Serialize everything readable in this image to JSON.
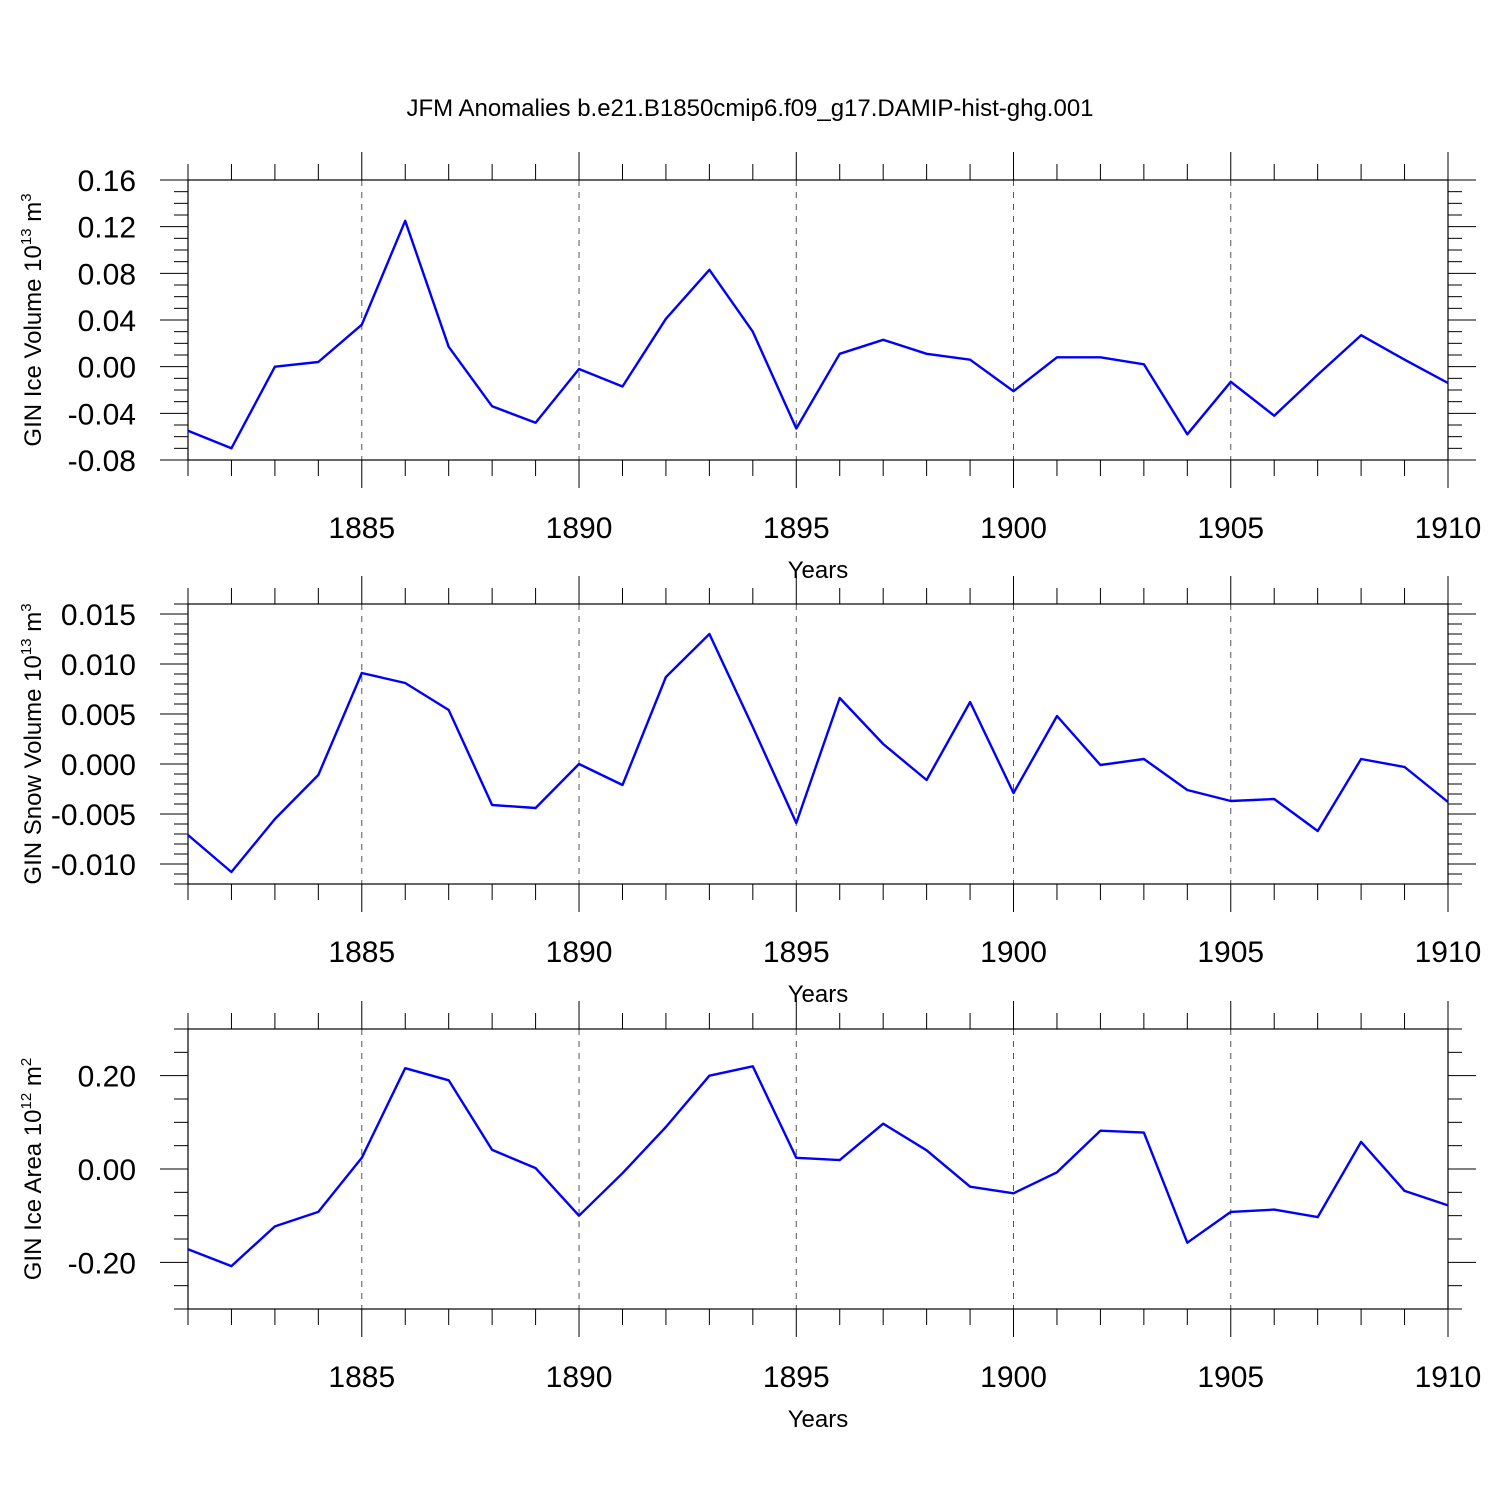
{
  "title": "JFM Anomalies b.e21.B1850cmip6.f09_g17.DAMIP-hist-ghg.001",
  "colors": {
    "series": "#0000ff",
    "frame": "#000000",
    "grid": "#555555"
  },
  "chart_data": [
    {
      "type": "line",
      "name": "ice-volume",
      "ylabel_main": "GIN Ice Volume 10",
      "ylabel_exp": "13",
      "ylabel_unit": "m",
      "ylabel_unit_exp": "3",
      "xlabel": "Years",
      "xlim": [
        1881,
        1910
      ],
      "ylim": [
        -0.08,
        0.16
      ],
      "x_ticks": [
        1885,
        1890,
        1895,
        1900,
        1905,
        1910
      ],
      "x_tick_labels": [
        "1885",
        "1890",
        "1895",
        "1900",
        "1905",
        "1910"
      ],
      "y_ticks": [
        -0.08,
        -0.04,
        0.0,
        0.04,
        0.08,
        0.12,
        0.16
      ],
      "y_tick_labels": [
        "-0.08",
        "-0.04",
        "0.00",
        "0.04",
        "0.08",
        "0.12",
        "0.16"
      ],
      "x_minor_step": 1,
      "y_minor_step": 0.01,
      "grid": "x-dashed",
      "x": [
        1881,
        1882,
        1883,
        1884,
        1885,
        1886,
        1887,
        1888,
        1889,
        1890,
        1891,
        1892,
        1893,
        1894,
        1895,
        1896,
        1897,
        1898,
        1899,
        1900,
        1901,
        1902,
        1903,
        1904,
        1905,
        1906,
        1907,
        1908,
        1909,
        1910
      ],
      "values": [
        -0.055,
        -0.07,
        0.0,
        0.004,
        0.036,
        0.125,
        0.017,
        -0.034,
        -0.048,
        -0.002,
        -0.017,
        0.041,
        0.083,
        0.03,
        -0.053,
        0.011,
        0.023,
        0.011,
        0.006,
        -0.021,
        0.008,
        0.008,
        0.002,
        -0.058,
        -0.013,
        -0.042,
        -0.007,
        0.027,
        0.006,
        -0.014
      ]
    },
    {
      "type": "line",
      "name": "snow-volume",
      "ylabel_main": "GIN Snow Volume 10",
      "ylabel_exp": "13",
      "ylabel_unit": "m",
      "ylabel_unit_exp": "3",
      "xlabel": "Years",
      "xlim": [
        1881,
        1910
      ],
      "ylim": [
        -0.012,
        0.016
      ],
      "x_ticks": [
        1885,
        1890,
        1895,
        1900,
        1905,
        1910
      ],
      "x_tick_labels": [
        "1885",
        "1890",
        "1895",
        "1900",
        "1905",
        "1910"
      ],
      "y_ticks": [
        -0.01,
        -0.005,
        0.0,
        0.005,
        0.01,
        0.015
      ],
      "y_tick_labels": [
        "-0.010",
        "-0.005",
        "0.000",
        "0.005",
        "0.010",
        "0.015"
      ],
      "x_minor_step": 1,
      "y_minor_step": 0.001,
      "grid": "x-dashed",
      "x": [
        1881,
        1882,
        1883,
        1884,
        1885,
        1886,
        1887,
        1888,
        1889,
        1890,
        1891,
        1892,
        1893,
        1894,
        1895,
        1896,
        1897,
        1898,
        1899,
        1900,
        1901,
        1902,
        1903,
        1904,
        1905,
        1906,
        1907,
        1908,
        1909,
        1910
      ],
      "values": [
        -0.0071,
        -0.0108,
        -0.0055,
        -0.0011,
        0.0091,
        0.0081,
        0.0054,
        -0.0041,
        -0.0044,
        0.0,
        -0.0021,
        0.0087,
        0.013,
        0.0037,
        -0.0059,
        0.0066,
        0.002,
        -0.0016,
        0.0062,
        -0.0029,
        0.0048,
        -0.0001,
        0.0005,
        -0.0026,
        -0.0037,
        -0.0035,
        -0.0067,
        0.0005,
        -0.0003,
        -0.0038
      ]
    },
    {
      "type": "line",
      "name": "ice-area",
      "ylabel_main": "GIN Ice Area 10",
      "ylabel_exp": "12",
      "ylabel_unit": "m",
      "ylabel_unit_exp": "2",
      "xlabel": "Years",
      "xlim": [
        1881,
        1910
      ],
      "ylim": [
        -0.3,
        0.3
      ],
      "x_ticks": [
        1885,
        1890,
        1895,
        1900,
        1905,
        1910
      ],
      "x_tick_labels": [
        "1885",
        "1890",
        "1895",
        "1900",
        "1905",
        "1910"
      ],
      "y_ticks": [
        -0.2,
        0.0,
        0.2
      ],
      "y_tick_labels": [
        "-0.20",
        "0.00",
        "0.20"
      ],
      "x_minor_step": 1,
      "y_minor_step": 0.05,
      "grid": "x-dashed",
      "x": [
        1881,
        1882,
        1883,
        1884,
        1885,
        1886,
        1887,
        1888,
        1889,
        1890,
        1891,
        1892,
        1893,
        1894,
        1895,
        1896,
        1897,
        1898,
        1899,
        1900,
        1901,
        1902,
        1903,
        1904,
        1905,
        1906,
        1907,
        1908,
        1909,
        1910
      ],
      "values": [
        -0.172,
        -0.208,
        -0.123,
        -0.092,
        0.024,
        0.216,
        0.19,
        0.041,
        0.002,
        -0.1,
        -0.009,
        0.09,
        0.2,
        0.22,
        0.024,
        0.019,
        0.097,
        0.04,
        -0.038,
        -0.052,
        -0.007,
        0.082,
        0.078,
        -0.158,
        -0.092,
        -0.087,
        -0.103,
        0.058,
        -0.047,
        -0.078
      ]
    }
  ]
}
